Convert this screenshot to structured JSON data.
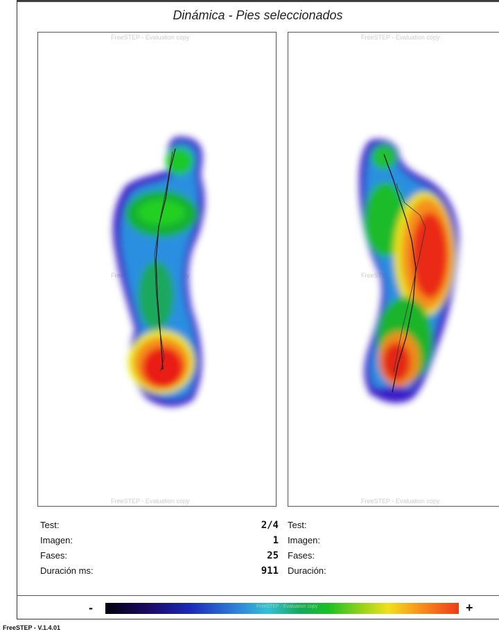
{
  "report": {
    "title": "Dinámica - Pies seleccionados",
    "version": "FreeSTEP - V.1.4.01"
  },
  "panels": {
    "watermark": "FreeSTEP - Evaluation copy",
    "watermark_mid": "FreeSTEP - Evaluation copy"
  },
  "left_info": {
    "test_label": "Test:",
    "test_value": "2/4",
    "imagen_label": "Imagen:",
    "imagen_value": "1",
    "fases_label": "Fases:",
    "fases_value": "25",
    "duracion_label": "Duración ms:",
    "duracion_value": "911"
  },
  "right_info": {
    "test_label": "Test:",
    "imagen_label": "Imagen:",
    "fases_label": "Fases:",
    "duracion_label": "Duración:"
  },
  "scale": {
    "minus": "-",
    "plus": "+",
    "watermark": "FreeSTEP - Evaluation copy"
  },
  "colors": {
    "low": "#000010",
    "mid": "#19c024",
    "high": "#f03a18"
  }
}
